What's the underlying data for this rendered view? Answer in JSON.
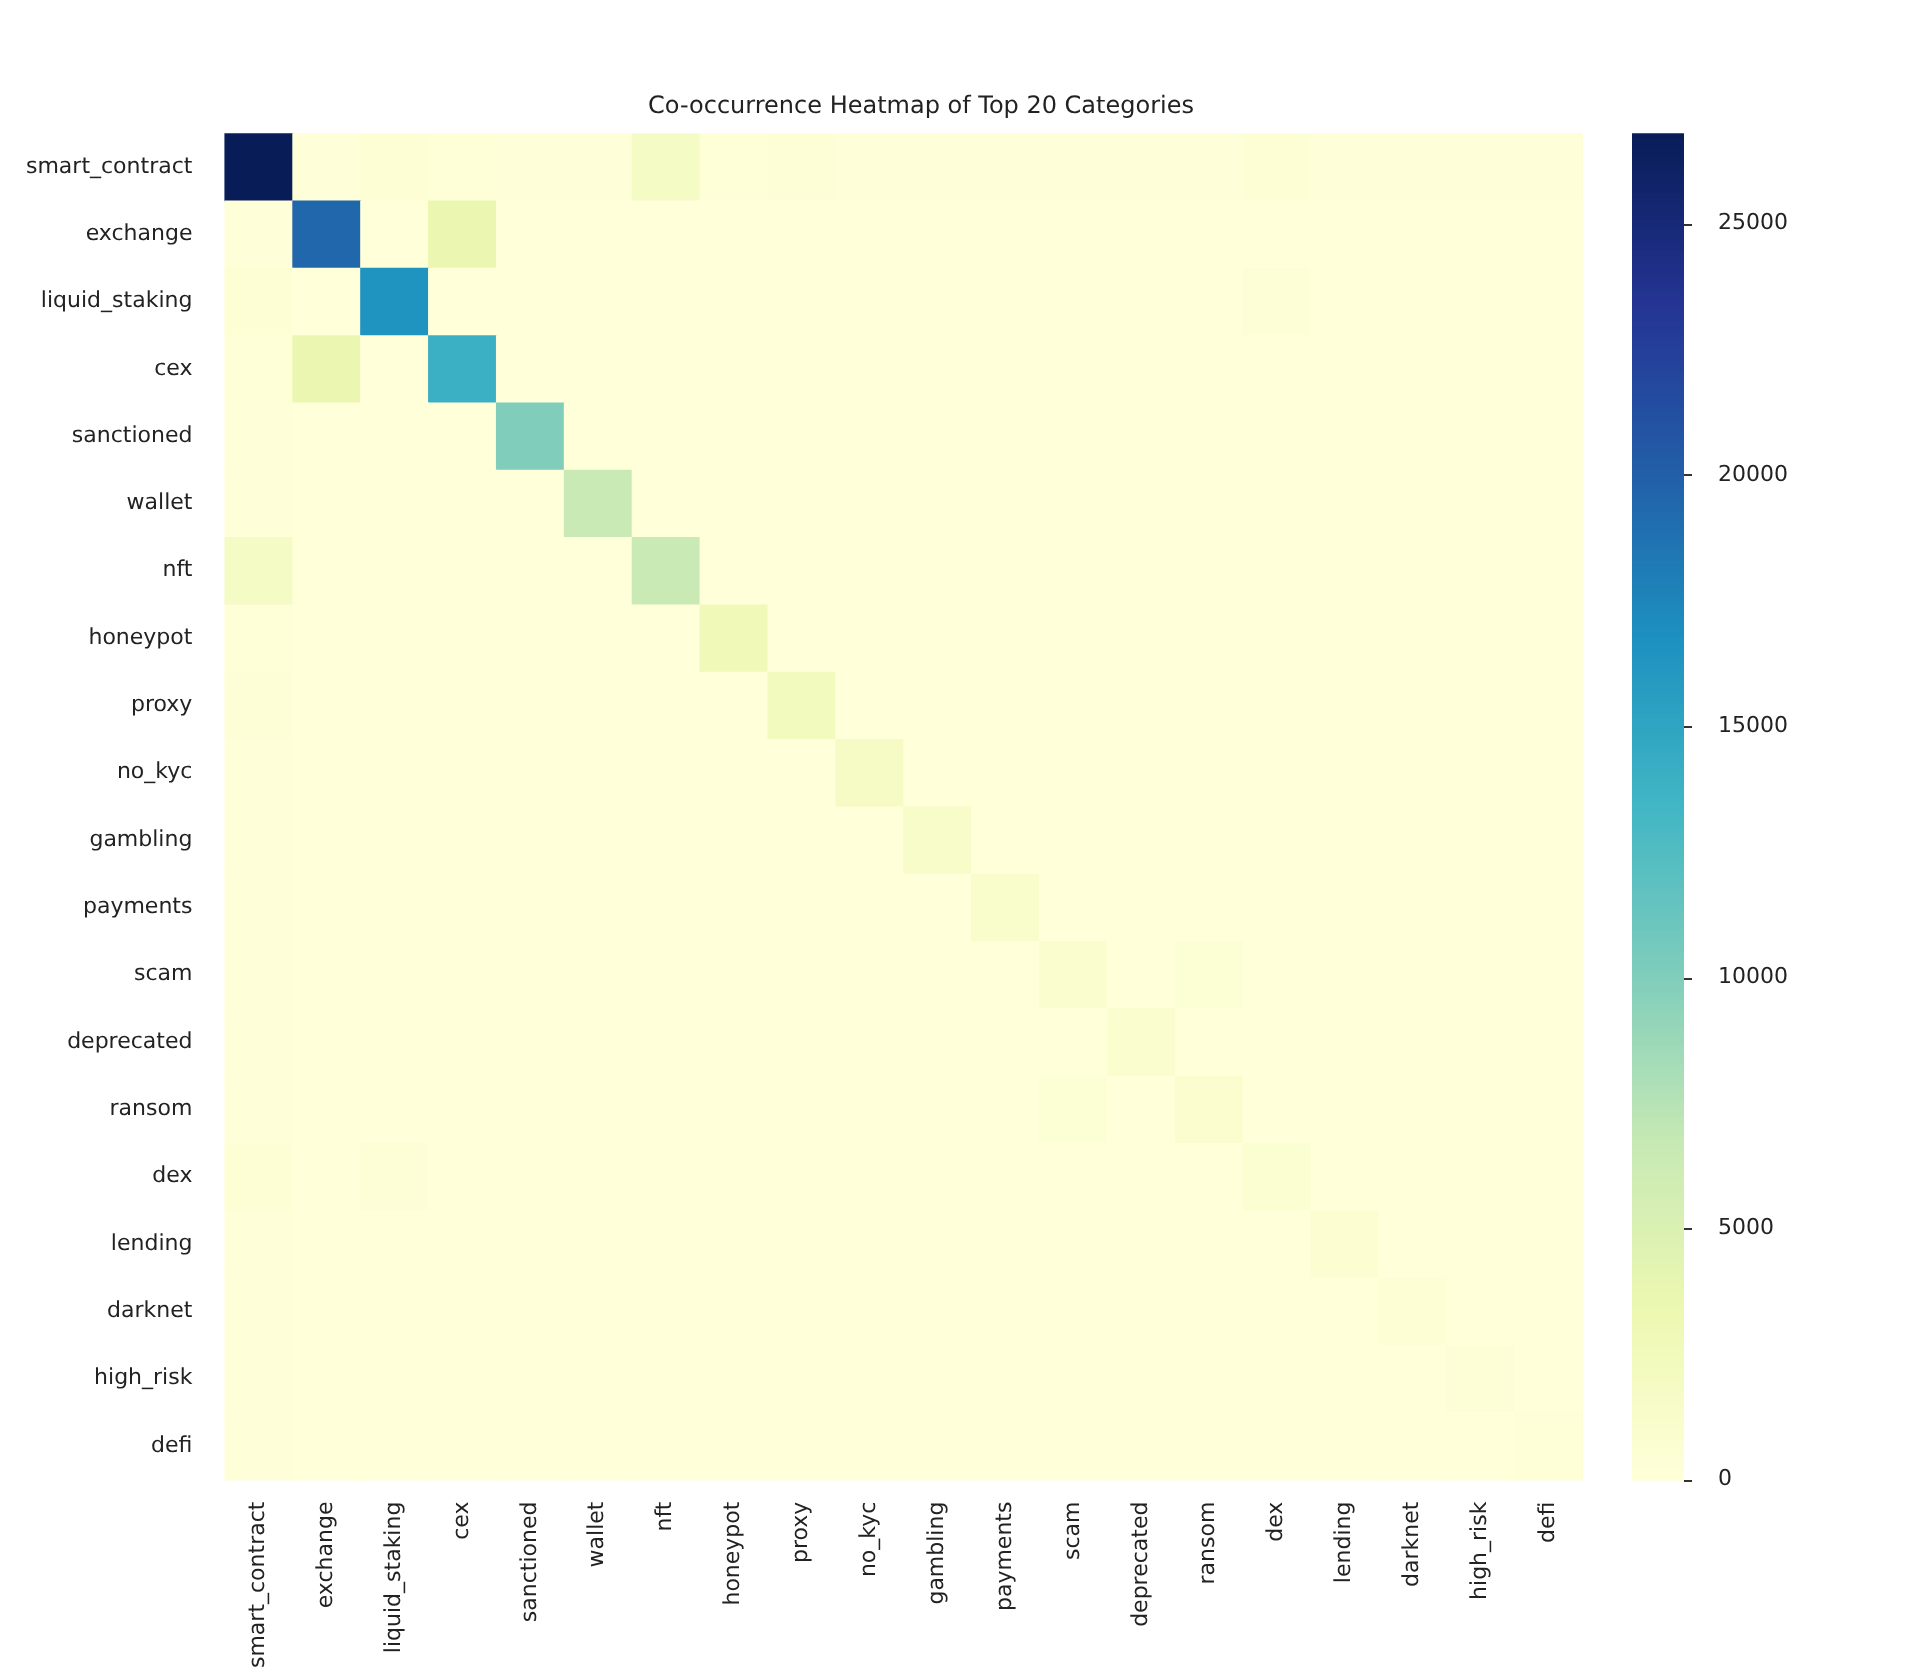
{
  "chart_data": {
    "type": "heatmap",
    "title": "Co-occurrence Heatmap of Top 20 Categories",
    "categories": [
      "smart_contract",
      "exchange",
      "liquid_staking",
      "cex",
      "sanctioned",
      "wallet",
      "nft",
      "honeypot",
      "proxy",
      "no_kyc",
      "gambling",
      "payments",
      "scam",
      "deprecated",
      "ransom",
      "dex",
      "lending",
      "darknet",
      "high_risk",
      "defi"
    ],
    "y_categories": [
      "smart_contract",
      "exchange",
      "liquid_staking",
      "cex",
      "sanctioned",
      "wallet",
      "nft",
      "honeypot",
      "proxy",
      "no_kyc",
      "gambling",
      "payments",
      "scam",
      "deprecated",
      "ransom",
      "dex",
      "lending",
      "darknet",
      "high_risk",
      "defi"
    ],
    "cells": [
      [
        26800,
        100,
        400,
        200,
        100,
        100,
        1800,
        200,
        300,
        100,
        100,
        100,
        100,
        100,
        100,
        400,
        100,
        100,
        100,
        100
      ],
      [
        100,
        19500,
        0,
        3500,
        0,
        0,
        0,
        0,
        0,
        0,
        0,
        0,
        0,
        0,
        0,
        0,
        0,
        0,
        0,
        0
      ],
      [
        400,
        0,
        16500,
        0,
        0,
        0,
        0,
        0,
        0,
        0,
        0,
        0,
        0,
        0,
        0,
        300,
        0,
        0,
        0,
        0
      ],
      [
        200,
        3500,
        0,
        14000,
        0,
        0,
        0,
        0,
        0,
        0,
        0,
        0,
        0,
        0,
        0,
        0,
        0,
        0,
        0,
        0
      ],
      [
        100,
        0,
        0,
        0,
        10000,
        0,
        0,
        0,
        0,
        0,
        0,
        0,
        0,
        0,
        0,
        0,
        0,
        0,
        0,
        0
      ],
      [
        100,
        0,
        0,
        0,
        0,
        6500,
        0,
        0,
        0,
        0,
        0,
        0,
        0,
        0,
        0,
        0,
        0,
        0,
        0,
        0
      ],
      [
        1800,
        0,
        0,
        0,
        0,
        0,
        6500,
        0,
        0,
        0,
        0,
        0,
        0,
        0,
        0,
        0,
        0,
        0,
        0,
        0
      ],
      [
        200,
        0,
        0,
        0,
        0,
        0,
        0,
        2800,
        0,
        0,
        0,
        0,
        0,
        0,
        0,
        0,
        0,
        0,
        0,
        0
      ],
      [
        300,
        0,
        0,
        0,
        0,
        0,
        0,
        0,
        2300,
        0,
        0,
        0,
        0,
        0,
        0,
        0,
        0,
        0,
        0,
        0
      ],
      [
        100,
        0,
        0,
        0,
        0,
        0,
        0,
        0,
        0,
        1700,
        0,
        0,
        0,
        0,
        0,
        0,
        0,
        0,
        0,
        0
      ],
      [
        100,
        0,
        0,
        0,
        0,
        0,
        0,
        0,
        0,
        0,
        1300,
        0,
        0,
        0,
        0,
        0,
        0,
        0,
        0,
        0
      ],
      [
        100,
        0,
        0,
        0,
        0,
        0,
        0,
        0,
        0,
        0,
        0,
        1100,
        0,
        0,
        0,
        0,
        0,
        0,
        0,
        0
      ],
      [
        100,
        0,
        0,
        0,
        0,
        0,
        0,
        0,
        0,
        0,
        0,
        0,
        900,
        0,
        500,
        0,
        0,
        0,
        0,
        0
      ],
      [
        100,
        0,
        0,
        0,
        0,
        0,
        0,
        0,
        0,
        0,
        0,
        0,
        0,
        1000,
        0,
        0,
        0,
        0,
        0,
        0
      ],
      [
        100,
        0,
        0,
        0,
        0,
        0,
        0,
        0,
        0,
        0,
        0,
        0,
        500,
        0,
        800,
        0,
        0,
        0,
        0,
        0
      ],
      [
        400,
        0,
        300,
        0,
        0,
        0,
        0,
        0,
        0,
        0,
        0,
        0,
        0,
        0,
        0,
        700,
        0,
        0,
        0,
        0
      ],
      [
        100,
        0,
        0,
        0,
        0,
        0,
        0,
        0,
        0,
        0,
        0,
        0,
        0,
        0,
        0,
        0,
        600,
        0,
        0,
        0
      ],
      [
        100,
        0,
        0,
        0,
        0,
        0,
        0,
        0,
        0,
        0,
        0,
        0,
        0,
        0,
        0,
        0,
        0,
        400,
        0,
        0
      ],
      [
        100,
        0,
        0,
        0,
        0,
        0,
        0,
        0,
        0,
        0,
        0,
        0,
        0,
        0,
        0,
        0,
        0,
        0,
        300,
        0
      ],
      [
        100,
        0,
        0,
        0,
        0,
        0,
        0,
        0,
        0,
        0,
        0,
        0,
        0,
        0,
        0,
        0,
        0,
        0,
        0,
        200
      ]
    ],
    "clim": [
      0,
      26800
    ],
    "cticks": [
      0,
      5000,
      10000,
      15000,
      20000,
      25000
    ]
  }
}
